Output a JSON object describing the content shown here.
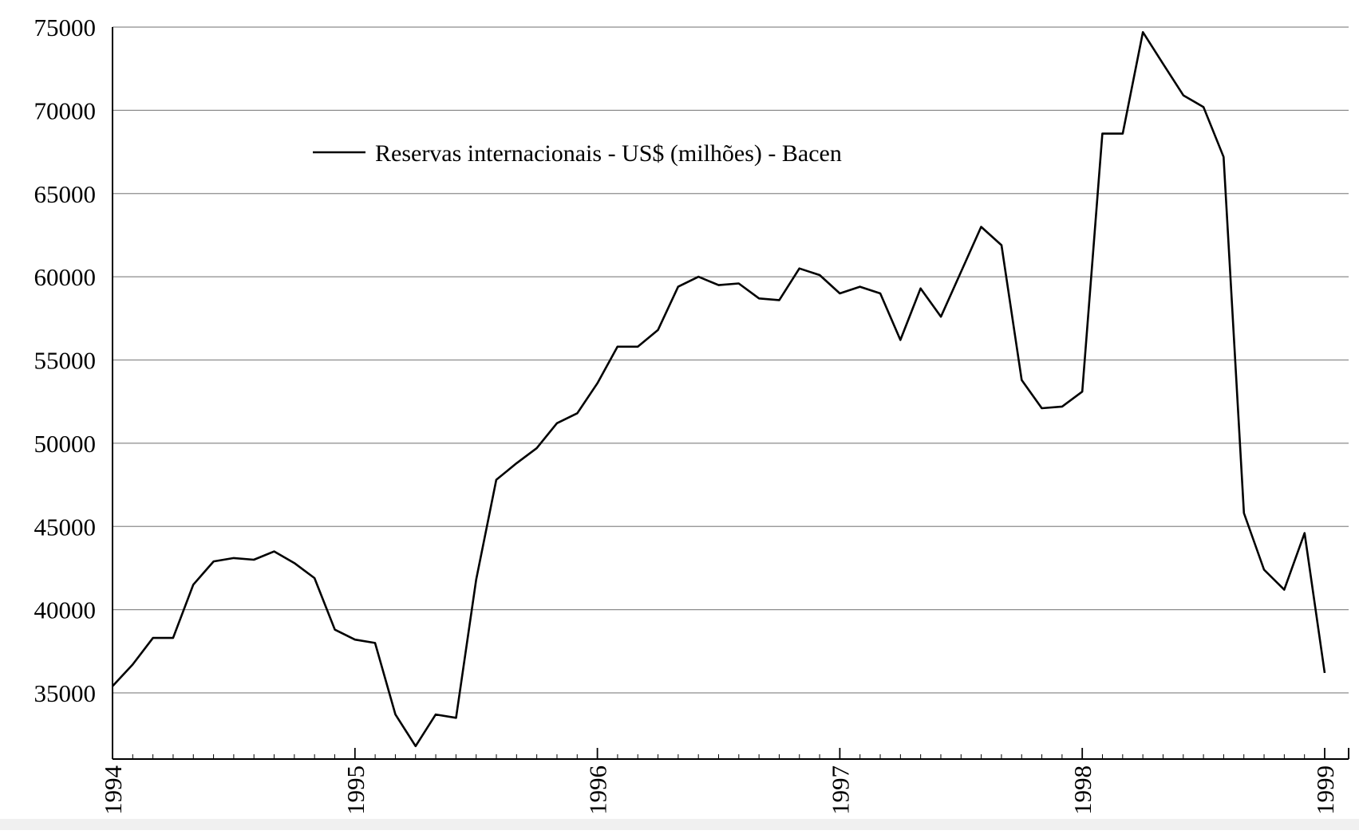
{
  "chart_data": {
    "type": "line",
    "title": "",
    "xlabel": "",
    "ylabel": "",
    "legend": {
      "placement": "top-left",
      "entries": [
        "Reservas internacionais - US$ (milhões) - Bacen"
      ]
    },
    "grid": "horizontal",
    "xlim": [
      1994.0,
      1999.0
    ],
    "ylim": [
      31000,
      75000
    ],
    "x_ticks": [
      1994,
      1995,
      1996,
      1997,
      1998,
      1999
    ],
    "x_tick_labels": [
      "1994",
      "1995",
      "1996",
      "1997",
      "1998",
      "1999"
    ],
    "y_ticks": [
      35000,
      40000,
      45000,
      50000,
      55000,
      60000,
      65000,
      70000,
      75000
    ],
    "y_tick_labels": [
      "35000",
      "40000",
      "45000",
      "50000",
      "55000",
      "60000",
      "65000",
      "70000",
      "75000"
    ],
    "x_unit": "year (monthly observations)",
    "series": [
      {
        "name": "Reservas internacionais - US$ (milhões) - Bacen",
        "color": "#000000",
        "x": [
          1994.0,
          1994.083,
          1994.167,
          1994.25,
          1994.333,
          1994.417,
          1994.5,
          1994.583,
          1994.667,
          1994.75,
          1994.833,
          1994.917,
          1995.0,
          1995.083,
          1995.167,
          1995.25,
          1995.333,
          1995.417,
          1995.5,
          1995.583,
          1995.667,
          1995.75,
          1995.833,
          1995.917,
          1996.0,
          1996.083,
          1996.167,
          1996.25,
          1996.333,
          1996.417,
          1996.5,
          1996.583,
          1996.667,
          1996.75,
          1996.833,
          1996.917,
          1997.0,
          1997.083,
          1997.167,
          1997.25,
          1997.333,
          1997.417,
          1997.5,
          1997.583,
          1997.667,
          1997.75,
          1997.833,
          1997.917,
          1998.0,
          1998.083,
          1998.167,
          1998.25,
          1998.333,
          1998.417,
          1998.5,
          1998.583,
          1998.667,
          1998.75,
          1998.833,
          1998.917,
          1999.0
        ],
        "y": [
          35400,
          36700,
          38300,
          38300,
          41500,
          42900,
          43100,
          43000,
          43500,
          42800,
          41900,
          38800,
          38200,
          38000,
          33700,
          31800,
          33700,
          33500,
          41800,
          47800,
          48800,
          49700,
          51200,
          51800,
          53600,
          55800,
          55800,
          56800,
          59400,
          60000,
          59500,
          59600,
          58700,
          58600,
          60500,
          60100,
          59000,
          59400,
          59000,
          56200,
          59300,
          57600,
          60300,
          63000,
          61900,
          53800,
          52100,
          52200,
          53100,
          68600,
          68600,
          74700,
          72800,
          70900,
          70200,
          67200,
          45800,
          42400,
          41200,
          44600,
          36200
        ]
      }
    ]
  }
}
